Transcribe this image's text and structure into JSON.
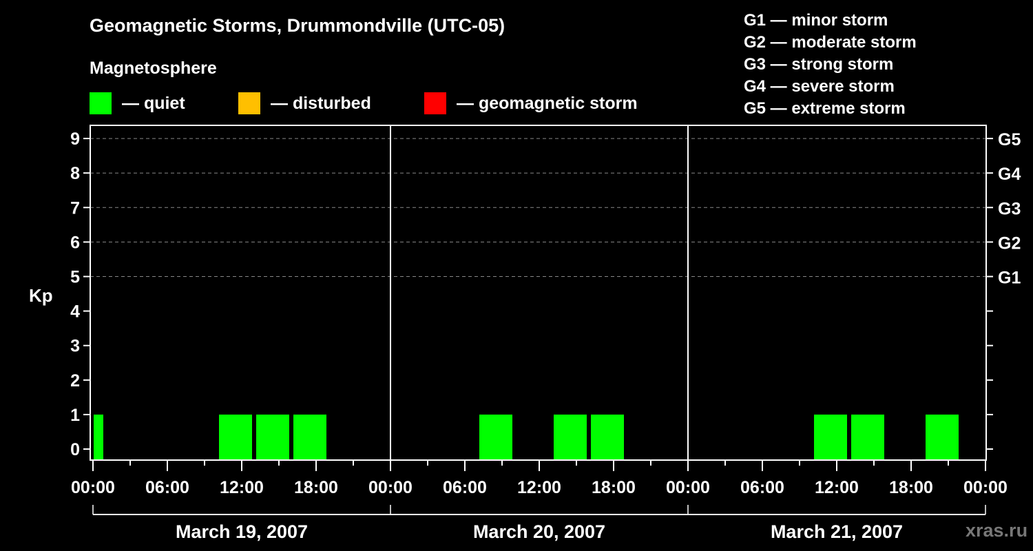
{
  "header": {
    "title": "Geomagnetic Storms, Drummondville (UTC-05)",
    "subtitle": "Magnetosphere"
  },
  "legend": [
    {
      "label": "— quiet",
      "color": "#00ff00"
    },
    {
      "label": "— disturbed",
      "color": "#ffbf00"
    },
    {
      "label": "— geomagnetic storm",
      "color": "#ff0000"
    }
  ],
  "g_levels": [
    "G1 — minor storm",
    "G2 — moderate storm",
    "G3 — strong storm",
    "G4 — severe storm",
    "G5 — extreme storm"
  ],
  "watermark": "xras.ru",
  "chart_data": {
    "type": "bar",
    "title": "Geomagnetic Storms, Drummondville (UTC-05)",
    "ylabel": "Kp",
    "xlabel": "",
    "ylim": [
      0,
      9
    ],
    "y_ticks": [
      0,
      1,
      2,
      3,
      4,
      5,
      6,
      7,
      8,
      9
    ],
    "right_ticks": [
      {
        "kp": 5,
        "label": "G1"
      },
      {
        "kp": 6,
        "label": "G2"
      },
      {
        "kp": 7,
        "label": "G3"
      },
      {
        "kp": 8,
        "label": "G4"
      },
      {
        "kp": 9,
        "label": "G5"
      }
    ],
    "x_tick_labels": [
      "00:00",
      "06:00",
      "12:00",
      "18:00",
      "00:00",
      "06:00",
      "12:00",
      "18:00",
      "00:00",
      "06:00",
      "12:00",
      "18:00",
      "00:00"
    ],
    "days": [
      "March 19, 2007",
      "March 20, 2007",
      "March 21, 2007"
    ],
    "grid": "dashed horizontal at Kp 5-9",
    "bin_hours": 3,
    "series": [
      {
        "name": "quiet",
        "color": "#00ff00",
        "points": [
          {
            "day": 0,
            "start_hour": -2,
            "kp": 1
          },
          {
            "day": 0,
            "start_hour": 10,
            "kp": 1
          },
          {
            "day": 0,
            "start_hour": 13,
            "kp": 1
          },
          {
            "day": 0,
            "start_hour": 16,
            "kp": 1
          },
          {
            "day": 1,
            "start_hour": 7,
            "kp": 1
          },
          {
            "day": 1,
            "start_hour": 13,
            "kp": 1
          },
          {
            "day": 1,
            "start_hour": 16,
            "kp": 1
          },
          {
            "day": 2,
            "start_hour": 10,
            "kp": 1
          },
          {
            "day": 2,
            "start_hour": 13,
            "kp": 1
          },
          {
            "day": 2,
            "start_hour": 19,
            "kp": 1
          }
        ]
      },
      {
        "name": "disturbed",
        "color": "#ffbf00",
        "points": []
      },
      {
        "name": "geomagnetic storm",
        "color": "#ff0000",
        "points": []
      }
    ]
  }
}
